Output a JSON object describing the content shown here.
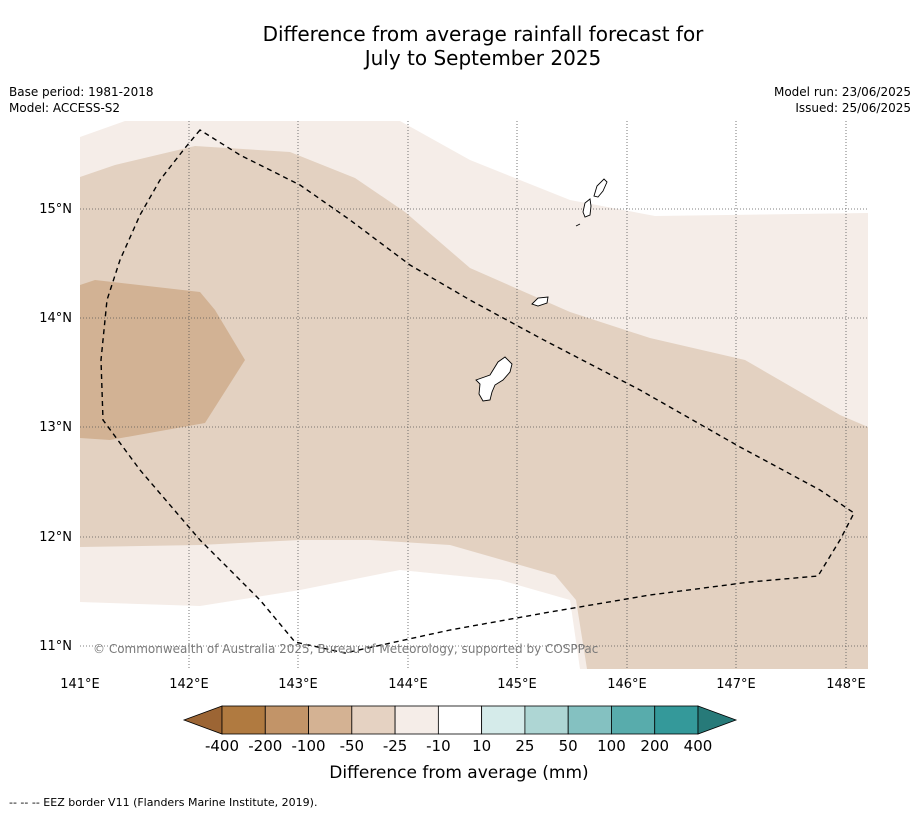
{
  "title": {
    "line1": "Difference from average rainfall forecast for",
    "line2": "July to September 2025"
  },
  "meta": {
    "base_period": "Base period: 1981-2018",
    "model": "Model: ACCESS-S2",
    "model_run": "Model run: 23/06/2025",
    "issued": "Issued: 25/06/2025"
  },
  "map": {
    "lat_ticks": [
      "15°N",
      "14°N",
      "13°N",
      "12°N",
      "11°N"
    ],
    "lon_ticks": [
      "141°E",
      "142°E",
      "143°E",
      "144°E",
      "145°E",
      "146°E",
      "147°E",
      "148°E"
    ],
    "copyright": "© Commonwealth of Australia 2025, Bureau of Meteorology, supported by COSPPac",
    "zone_colors": {
      "lightest": "#f5ede8",
      "light": "#e3d1c1",
      "medium": "#d2b294"
    }
  },
  "colorbar": {
    "title": "Difference from average (mm)",
    "labels": [
      "-400",
      "-200",
      "-100",
      "-50",
      "-25",
      "-10",
      "10",
      "25",
      "50",
      "100",
      "200",
      "400"
    ],
    "colors": [
      "#9c6534",
      "#b07a40",
      "#c29468",
      "#d4b293",
      "#e5d2c2",
      "#f5ede8",
      "#ffffff",
      "#d5ebea",
      "#aed6d4",
      "#84c1c1",
      "#58acac",
      "#34999a",
      "#277a79"
    ]
  },
  "footnote": "-- -- -- EEZ border V11 (Flanders Marine Institute, 2019)."
}
